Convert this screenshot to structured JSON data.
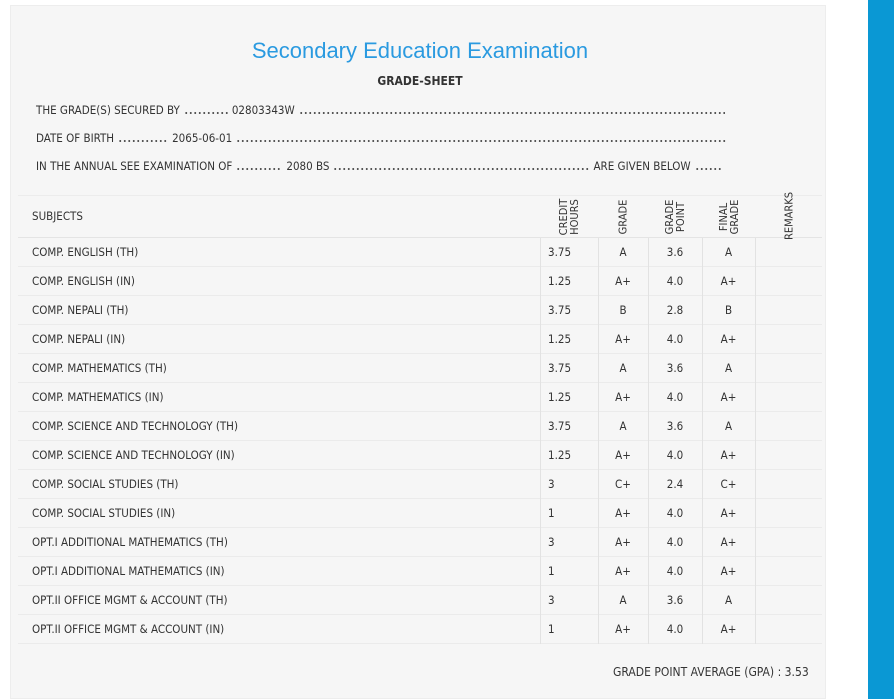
{
  "header": {
    "title": "Secondary Education Examination",
    "subtitle": "GRADE-SHEET"
  },
  "info": [
    {
      "label": "THE GRADE(S) SECURED BY",
      "value": "02803343W"
    },
    {
      "label": "DATE OF BIRTH",
      "value": "2065-06-01"
    },
    {
      "label": "IN THE ANNUAL SEE EXAMINATION OF",
      "value": "2080 BS",
      "suffix": "ARE GIVEN BELOW"
    }
  ],
  "table": {
    "columns": [
      "SUBJECTS",
      "CREDIT HOURS",
      "GRADE",
      "GRADE POINT",
      "FINAL GRADE",
      "REMARKS"
    ],
    "rows": [
      [
        "COMP. ENGLISH (TH)",
        "3.75",
        "A",
        "3.6",
        "A"
      ],
      [
        "COMP. ENGLISH (IN)",
        "1.25",
        "A+",
        "4.0",
        "A+"
      ],
      [
        "COMP. NEPALI (TH)",
        "3.75",
        "B",
        "2.8",
        "B"
      ],
      [
        "COMP. NEPALI (IN)",
        "1.25",
        "A+",
        "4.0",
        "A+"
      ],
      [
        "COMP. MATHEMATICS (TH)",
        "3.75",
        "A",
        "3.6",
        "A"
      ],
      [
        "COMP. MATHEMATICS (IN)",
        "1.25",
        "A+",
        "4.0",
        "A+"
      ],
      [
        "COMP. SCIENCE AND TECHNOLOGY (TH)",
        "3.75",
        "A",
        "3.6",
        "A"
      ],
      [
        "COMP. SCIENCE AND TECHNOLOGY (IN)",
        "1.25",
        "A+",
        "4.0",
        "A+"
      ],
      [
        "COMP. SOCIAL STUDIES (TH)",
        "3",
        "C+",
        "2.4",
        "C+"
      ],
      [
        "COMP. SOCIAL STUDIES (IN)",
        "1",
        "A+",
        "4.0",
        "A+"
      ],
      [
        "OPT.I ADDITIONAL MATHEMATICS (TH)",
        "3",
        "A+",
        "4.0",
        "A+"
      ],
      [
        "OPT.I ADDITIONAL MATHEMATICS (IN)",
        "1",
        "A+",
        "4.0",
        "A+"
      ],
      [
        "OPT.II OFFICE MGMT & ACCOUNT (TH)",
        "3",
        "A",
        "3.6",
        "A"
      ],
      [
        "OPT.II OFFICE MGMT & ACCOUNT (IN)",
        "1",
        "A+",
        "4.0",
        "A+"
      ]
    ]
  },
  "gpa": {
    "label": "GRADE POINT AVERAGE (GPA) :",
    "value": "3.53"
  }
}
